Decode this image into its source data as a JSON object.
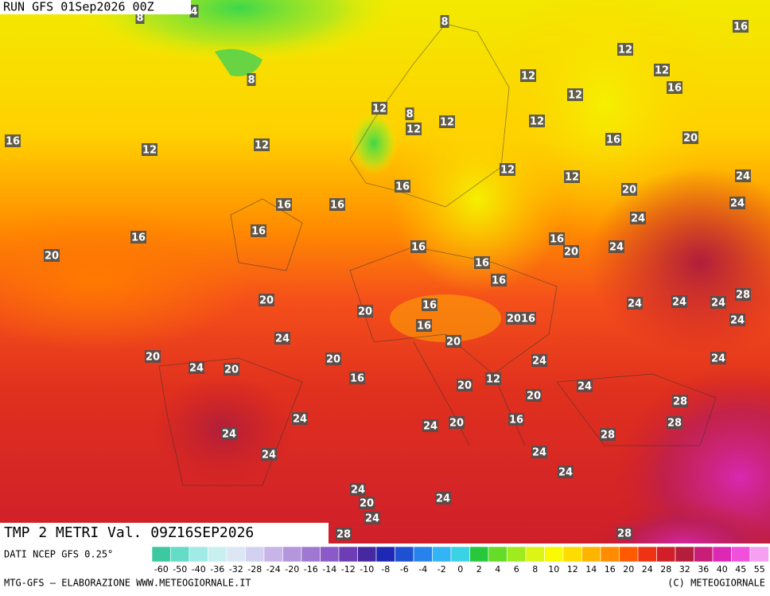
{
  "header": {
    "run": "RUN GFS 01Sep2026 00Z",
    "field": "TMP 2 METRI Val. 09Z16SEP2026"
  },
  "map_labels": [
    16,
    12,
    12,
    12,
    16,
    12,
    12,
    12,
    12,
    12,
    16,
    12,
    12,
    16,
    20,
    12,
    12,
    24,
    16,
    20,
    16,
    16,
    24,
    24,
    16,
    16,
    16,
    16,
    24,
    20,
    20,
    16,
    16,
    20,
    20,
    16,
    24,
    24,
    24,
    28,
    16,
    20,
    16,
    24,
    24,
    20,
    20,
    24,
    20,
    20,
    24,
    24,
    16,
    12,
    20,
    24,
    20,
    28,
    24,
    20,
    24,
    16,
    28,
    24,
    28,
    24,
    24,
    24,
    24,
    20,
    24,
    24,
    28,
    28,
    8,
    8,
    8,
    4,
    8
  ],
  "colorbar": {
    "source": "DATI NCEP GFS 0.25°",
    "ticks": [
      -60,
      -50,
      -40,
      -36,
      -32,
      -28,
      -24,
      -20,
      -16,
      -14,
      -12,
      -10,
      -8,
      -6,
      -4,
      -2,
      0,
      2,
      4,
      6,
      8,
      10,
      12,
      14,
      16,
      20,
      24,
      28,
      32,
      36,
      40,
      45,
      55
    ],
    "colors": [
      "#3cc8a0",
      "#64dcc8",
      "#a0ebe6",
      "#c8f0f0",
      "#dce6f5",
      "#d2d2f0",
      "#c8b4e6",
      "#b496dc",
      "#a078d2",
      "#8c5ac8",
      "#6e3cb4",
      "#4628a0",
      "#1e28b4",
      "#1e50d2",
      "#2882eb",
      "#32b4f5",
      "#3cd2e6",
      "#28c83c",
      "#64dc28",
      "#a0eb1e",
      "#dcf514",
      "#fafa00",
      "#ffdc00",
      "#ffb400",
      "#ff8c00",
      "#ff5a00",
      "#f03214",
      "#d21e28",
      "#b41e3c",
      "#c81e78",
      "#dc28b4",
      "#f050dc",
      "#f5a0f0"
    ]
  },
  "footer": {
    "credit": "MTG-GFS — ELABORAZIONE WWW.METEOGIORNALE.IT",
    "copyright": "(C) METEOGIORNALE"
  }
}
